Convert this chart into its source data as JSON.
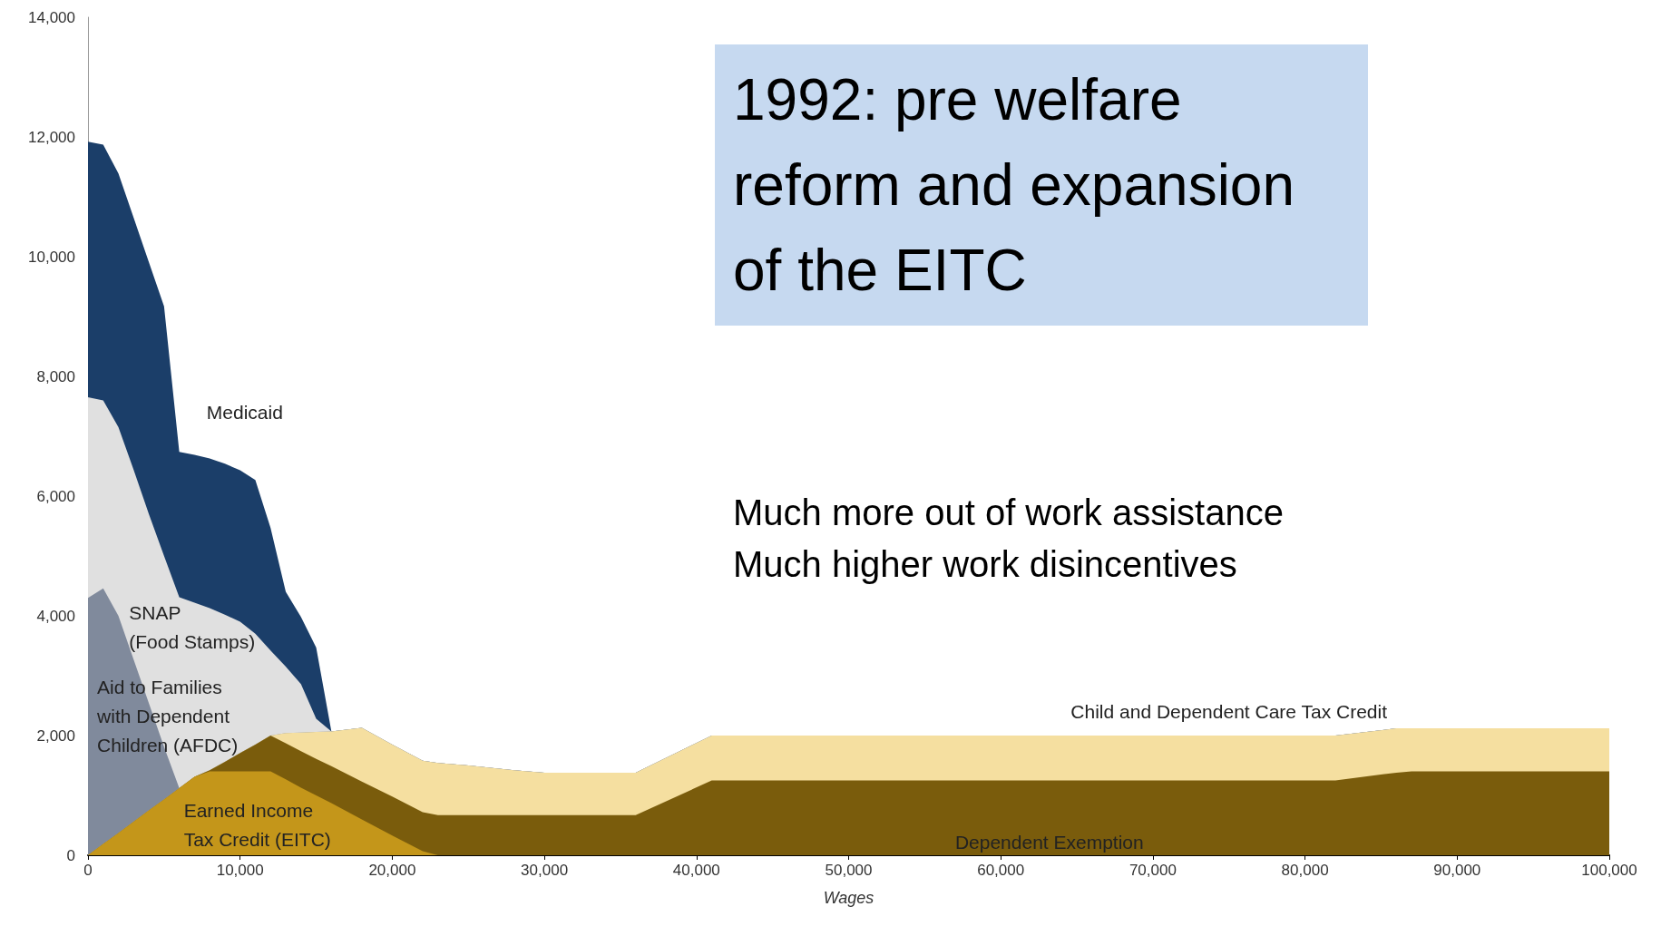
{
  "chart_data": {
    "type": "area",
    "stacked": true,
    "title": "1992: pre welfare reform and expansion of the EITC",
    "xlabel": "Wages",
    "x": [
      0,
      1000,
      2000,
      3000,
      4000,
      5000,
      6000,
      7000,
      8000,
      9000,
      10000,
      11000,
      12000,
      13000,
      14000,
      15000,
      16000,
      18000,
      20000,
      22000,
      23000,
      25000,
      28000,
      30000,
      36000,
      41000,
      82000,
      86000,
      87000,
      100000
    ],
    "series": [
      {
        "name": "Earned Income\nTax Credit (EITC)",
        "color": "#c4961a",
        "values": [
          0,
          190,
          370,
          560,
          750,
          930,
          1120,
          1310,
          1400,
          1400,
          1400,
          1400,
          1400,
          1270,
          1130,
          1000,
          870,
          600,
          330,
          70,
          0,
          0,
          0,
          0,
          0,
          0,
          0,
          0,
          0,
          0
        ]
      },
      {
        "name": "Dependent Exemption",
        "color": "#7a5c0c",
        "values": [
          0,
          0,
          0,
          0,
          0,
          0,
          0,
          0,
          20,
          160,
          310,
          450,
          600,
          600,
          610,
          610,
          620,
          630,
          650,
          650,
          670,
          670,
          670,
          670,
          670,
          1250,
          1250,
          1380,
          1400,
          1400
        ]
      },
      {
        "name": "Child and Dependent Care Tax Credit",
        "color": "#f5dfa0",
        "values": [
          0,
          0,
          0,
          0,
          0,
          0,
          0,
          0,
          0,
          0,
          0,
          0,
          0,
          170,
          310,
          450,
          580,
          900,
          870,
          860,
          870,
          830,
          750,
          710,
          710,
          750,
          750,
          740,
          720,
          720
        ]
      },
      {
        "name": "Aid to Families\nwith Dependent\nChildren (AFDC)",
        "color": "#808a9c",
        "values": [
          4300,
          4270,
          3630,
          2710,
          1790,
          880,
          0,
          0,
          0,
          0,
          0,
          0,
          0,
          0,
          0,
          0,
          0,
          0,
          0,
          0,
          0,
          0,
          0,
          0,
          0,
          0,
          0,
          0,
          0,
          0
        ]
      },
      {
        "name": "SNAP\n(Food Stamps)",
        "color": "#e0e0e0",
        "values": [
          3350,
          3140,
          3150,
          3170,
          3160,
          3190,
          3190,
          2910,
          2710,
          2460,
          2190,
          1850,
          1420,
          1110,
          810,
          220,
          0,
          0,
          0,
          0,
          0,
          0,
          0,
          0,
          0,
          0,
          0,
          0,
          0,
          0
        ]
      },
      {
        "name": "Medicaid",
        "color": "#1b3e69",
        "values": [
          4270,
          4270,
          4240,
          4210,
          4210,
          4170,
          2430,
          2470,
          2500,
          2520,
          2530,
          2570,
          2050,
          1250,
          1120,
          1190,
          0,
          0,
          0,
          0,
          0,
          0,
          0,
          0,
          0,
          0,
          0,
          0,
          0,
          0
        ]
      }
    ],
    "xlim": [
      0,
      100000
    ],
    "xticks": [
      0,
      {
        "value": 10000,
        "label": "10,000"
      },
      {
        "value": 20000,
        "label": "20,000"
      },
      {
        "value": 30000,
        "label": "30,000"
      },
      {
        "value": 40000,
        "label": "40,000"
      },
      {
        "value": 50000,
        "label": "50,000"
      },
      {
        "value": 60000,
        "label": "60,000"
      },
      {
        "value": 70000,
        "label": "70,000"
      },
      {
        "value": 80000,
        "label": "80,000"
      },
      {
        "value": 90000,
        "label": "90,000"
      },
      {
        "value": 100000,
        "label": "100,000"
      }
    ],
    "ylim": [
      0,
      14000
    ],
    "yticks": [
      0,
      {
        "value": 2000,
        "label": "2,000"
      },
      {
        "value": 4000,
        "label": "4,000"
      },
      {
        "value": 6000,
        "label": "6,000"
      },
      {
        "value": 8000,
        "label": "8,000"
      },
      {
        "value": 10000,
        "label": "10,000"
      },
      {
        "value": 12000,
        "label": "12,000"
      },
      {
        "value": 14000,
        "label": "14,000"
      }
    ],
    "grid": false,
    "marker": "none",
    "annotations": [
      "Much more out of work assistance",
      "Much higher work disincentives"
    ]
  }
}
